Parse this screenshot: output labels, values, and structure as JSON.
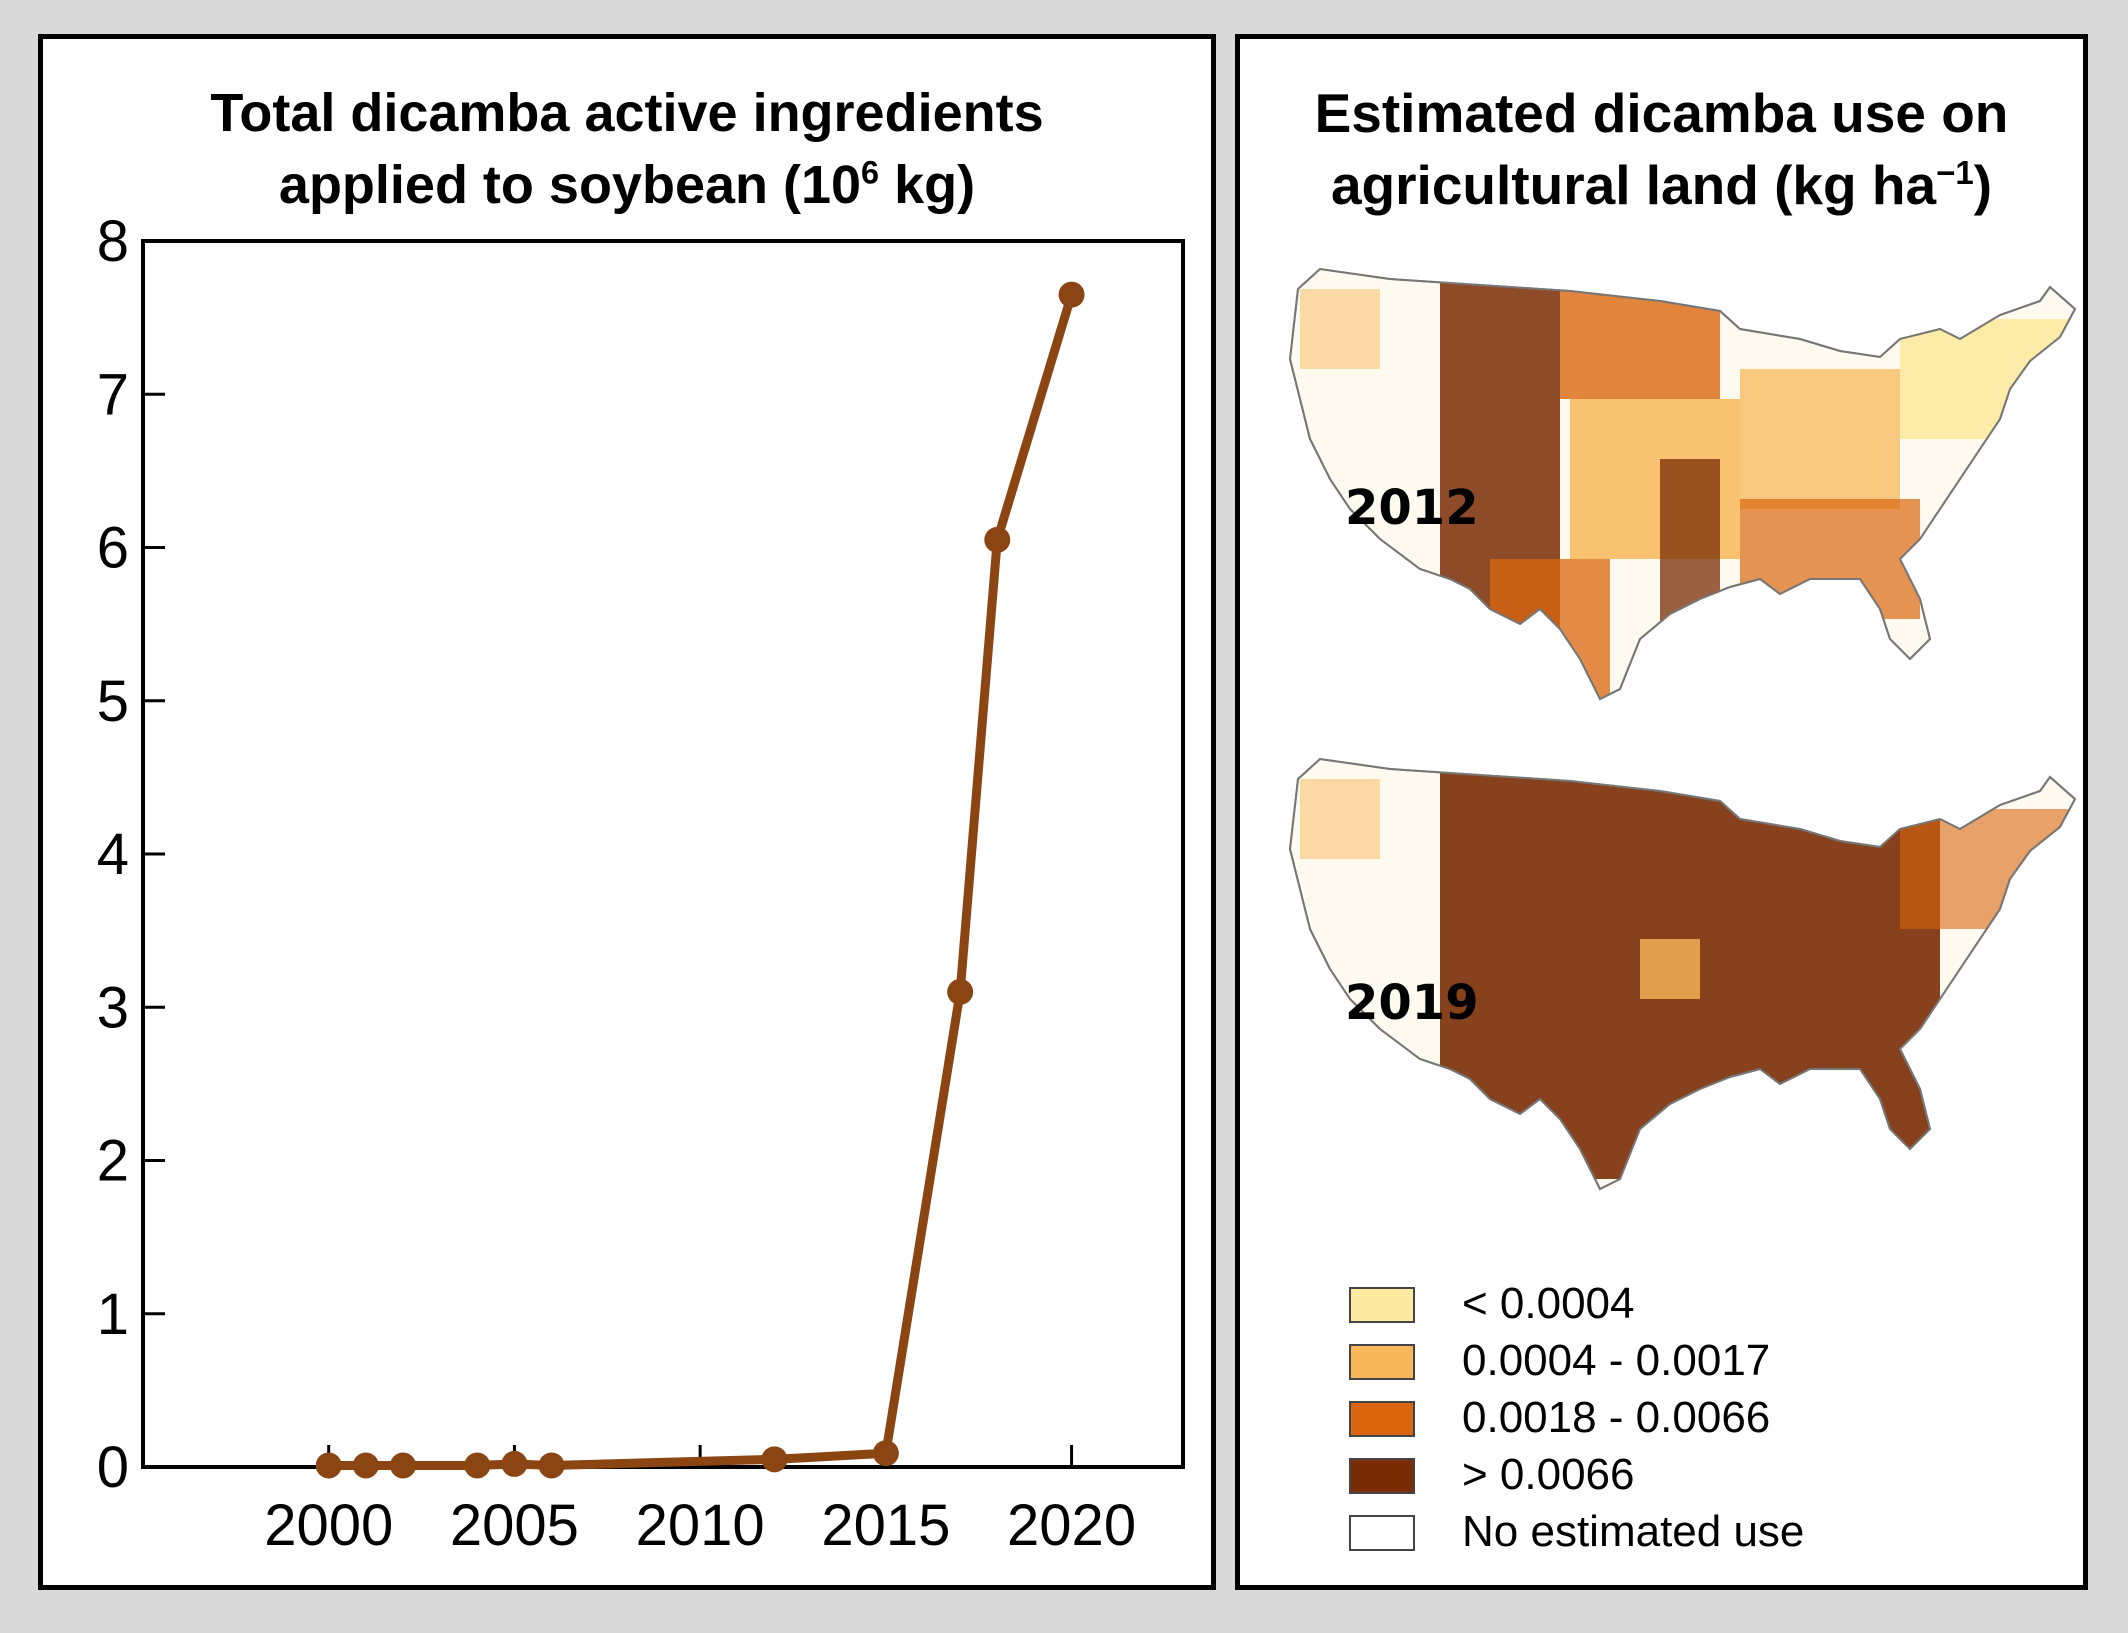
{
  "left": {
    "title_line1": "Total dicamba active ingredients",
    "title_line2_pre": "applied to soybean (10",
    "title_line2_sup": "6",
    "title_line2_post": " kg)"
  },
  "right": {
    "title_line1": "Estimated dicamba use on",
    "title_line2_pre": "agricultural land (kg ha",
    "title_line2_sup": "−1",
    "title_line2_post": ")",
    "map_top_year": "2012",
    "map_bottom_year": "2019",
    "legend": [
      {
        "label": "< 0.0004",
        "color": "#fde9a0"
      },
      {
        "label": "0.0004 - 0.0017",
        "color": "#f7b75a"
      },
      {
        "label": "0.0018 - 0.0066",
        "color": "#d9660f"
      },
      {
        "label": "> 0.0066",
        "color": "#7a2c04"
      },
      {
        "label": "No estimated use",
        "color": "#ffffff"
      }
    ]
  },
  "chart_data": {
    "type": "line",
    "title": "Total dicamba active ingredients applied to soybean (10^6 kg)",
    "x": [
      2000,
      2001,
      2002,
      2004,
      2005,
      2006,
      2012,
      2015,
      2017,
      2018,
      2020
    ],
    "y": [
      0.01,
      0.01,
      0.01,
      0.01,
      0.02,
      0.01,
      0.05,
      0.09,
      3.1,
      6.05,
      7.65
    ],
    "xlim": [
      1995,
      2023
    ],
    "ylim": [
      0,
      8
    ],
    "x_ticks": [
      2000,
      2005,
      2010,
      2015,
      2020
    ],
    "y_ticks": [
      0,
      1,
      2,
      3,
      4,
      5,
      6,
      7,
      8
    ],
    "line_color": "#8b4513",
    "grid": false,
    "legend": "none"
  }
}
